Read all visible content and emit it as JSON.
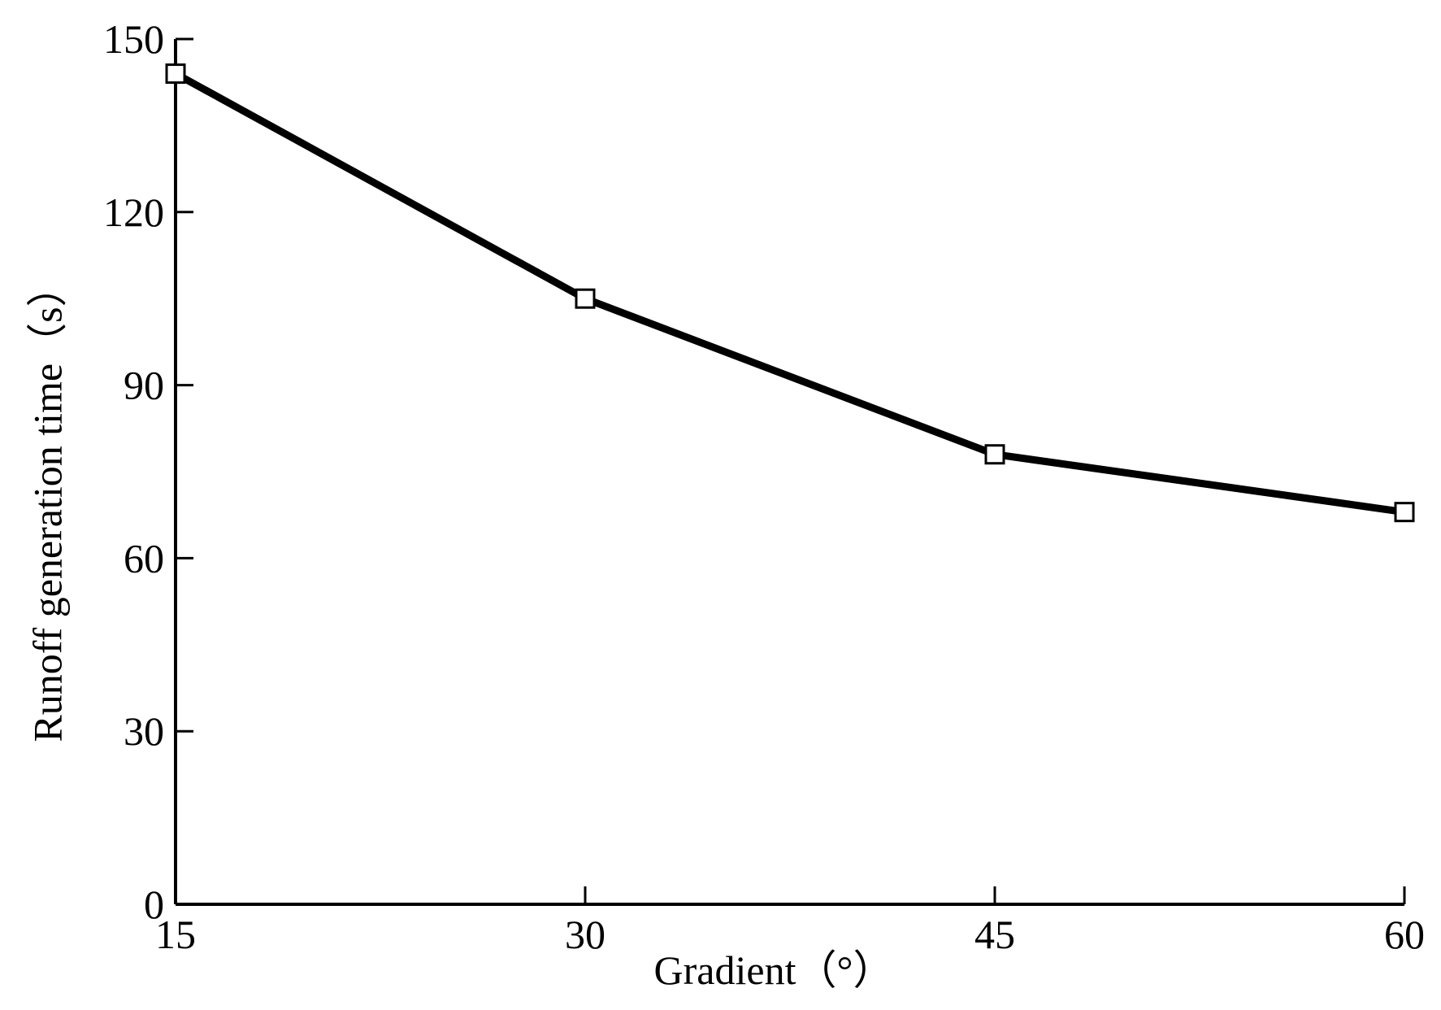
{
  "chart_data": {
    "type": "line",
    "x": [
      15,
      30,
      45,
      60
    ],
    "series": [
      {
        "values": [
          144,
          105,
          78,
          68
        ],
        "marker": "open-square",
        "color": "#000000"
      }
    ],
    "xlabel": "Gradient（°）",
    "ylabel": "Runoff generation time（s）",
    "xlim": [
      15,
      60
    ],
    "ylim": [
      0,
      150
    ],
    "xticks": [
      "15",
      "30",
      "45",
      "60"
    ],
    "yticks": [
      "0",
      "30",
      "60",
      "90",
      "120",
      "150"
    ],
    "grid": false
  }
}
